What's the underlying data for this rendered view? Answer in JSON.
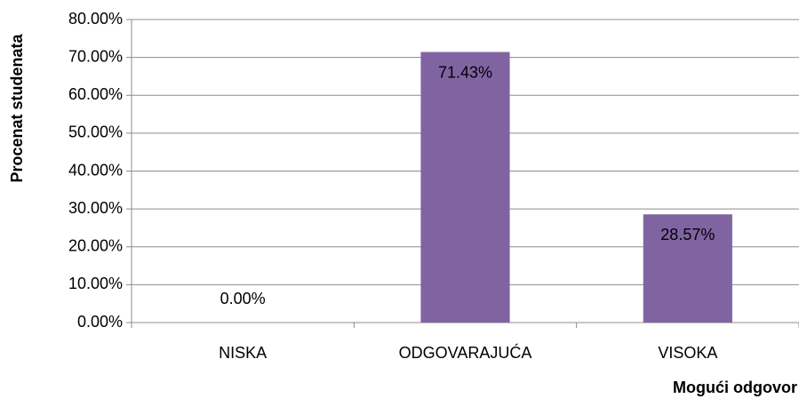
{
  "chart_data": {
    "type": "bar",
    "categories": [
      "NISKA",
      "ODGOVARAJUĆA",
      "VISOKA"
    ],
    "values": [
      0,
      71.43,
      28.57
    ],
    "value_labels": [
      "0.00%",
      "71.43%",
      "28.57%"
    ],
    "color": "#8064a2",
    "y_label": "Procenat studenata",
    "x_label": "Mogući odgovor",
    "ylim": [
      0,
      80
    ],
    "yticks": [
      {
        "value": 0,
        "label": "0.00%"
      },
      {
        "value": 10,
        "label": "10.00%"
      },
      {
        "value": 20,
        "label": "20.00%"
      },
      {
        "value": 30,
        "label": "30.00%"
      },
      {
        "value": 40,
        "label": "40.00%"
      },
      {
        "value": 50,
        "label": "50.00%"
      },
      {
        "value": 60,
        "label": "60.00%"
      },
      {
        "value": 70,
        "label": "70.00%"
      },
      {
        "value": 80,
        "label": "80.00%"
      }
    ],
    "grid": true
  }
}
